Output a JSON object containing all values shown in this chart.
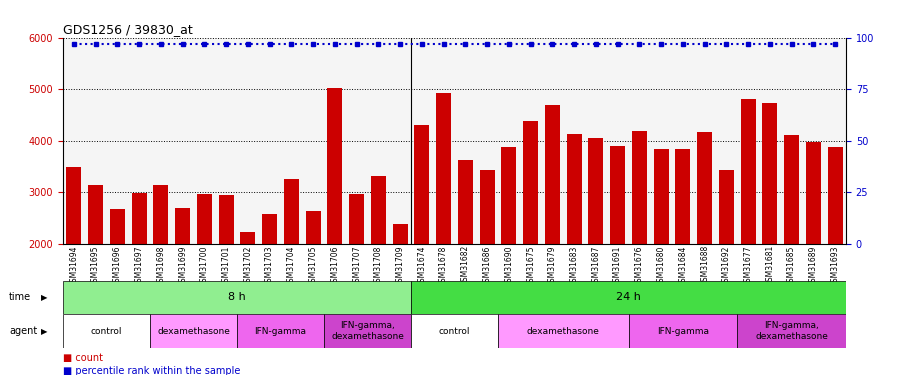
{
  "title": "GDS1256 / 39830_at",
  "samples": [
    "GSM31694",
    "GSM31695",
    "GSM31696",
    "GSM31697",
    "GSM31698",
    "GSM31699",
    "GSM31700",
    "GSM31701",
    "GSM31702",
    "GSM31703",
    "GSM31704",
    "GSM31705",
    "GSM31706",
    "GSM31707",
    "GSM31708",
    "GSM31709",
    "GSM31674",
    "GSM31678",
    "GSM31682",
    "GSM31686",
    "GSM31690",
    "GSM31675",
    "GSM31679",
    "GSM31683",
    "GSM31687",
    "GSM31691",
    "GSM31676",
    "GSM31680",
    "GSM31684",
    "GSM31688",
    "GSM31692",
    "GSM31677",
    "GSM31681",
    "GSM31685",
    "GSM31689",
    "GSM31693"
  ],
  "values": [
    3480,
    3130,
    2670,
    2980,
    3130,
    2700,
    2960,
    2950,
    2220,
    2580,
    3260,
    2640,
    5020,
    2970,
    3310,
    2380,
    4310,
    4920,
    3630,
    3430,
    3870,
    4390,
    4700,
    4130,
    4060,
    3890,
    4180,
    3830,
    3840,
    4160,
    3430,
    4810,
    4720,
    4110,
    3980,
    3870
  ],
  "percentile_values": [
    97,
    97,
    97,
    97,
    97,
    97,
    97,
    97,
    97,
    97,
    97,
    97,
    97,
    97,
    97,
    97,
    97,
    97,
    97,
    97,
    97,
    97,
    97,
    97,
    97,
    97,
    97,
    97,
    97,
    97,
    97,
    97,
    97,
    97,
    97,
    97
  ],
  "bar_color": "#cc0000",
  "percentile_color": "#0000cc",
  "ylim_left": [
    2000,
    6000
  ],
  "ylim_right": [
    0,
    100
  ],
  "yticks_left": [
    2000,
    3000,
    4000,
    5000,
    6000
  ],
  "yticks_right": [
    0,
    25,
    50,
    75,
    100
  ],
  "bg_color": "#ffffff",
  "plot_bg": "#f0f0f0",
  "time_8h_color": "#90ee90",
  "time_24h_color": "#00cc44",
  "agent_colors": {
    "control": "#ffffff",
    "dexamethasone": "#ff99ff",
    "IFN-gamma": "#ff66ff",
    "IFN-gamma, dexamethasone": "#cc44cc"
  },
  "time_groups": [
    {
      "label": "8 h",
      "start": 0,
      "end": 16
    },
    {
      "label": "24 h",
      "start": 16,
      "end": 36
    }
  ],
  "agent_groups": [
    {
      "label": "control",
      "start": 0,
      "end": 4,
      "color": "#ffffff"
    },
    {
      "label": "dexamethasone",
      "start": 4,
      "end": 8,
      "color": "#ff99ff"
    },
    {
      "label": "IFN-gamma",
      "start": 8,
      "end": 12,
      "color": "#ee66ee"
    },
    {
      "label": "IFN-gamma,\ndexamethasone",
      "start": 12,
      "end": 16,
      "color": "#cc44cc"
    },
    {
      "label": "control",
      "start": 16,
      "end": 20,
      "color": "#ffffff"
    },
    {
      "label": "dexamethasone",
      "start": 20,
      "end": 26,
      "color": "#ff99ff"
    },
    {
      "label": "IFN-gamma",
      "start": 26,
      "end": 31,
      "color": "#ee66ee"
    },
    {
      "label": "IFN-gamma,\ndexamethasone",
      "start": 31,
      "end": 36,
      "color": "#cc44cc"
    }
  ]
}
